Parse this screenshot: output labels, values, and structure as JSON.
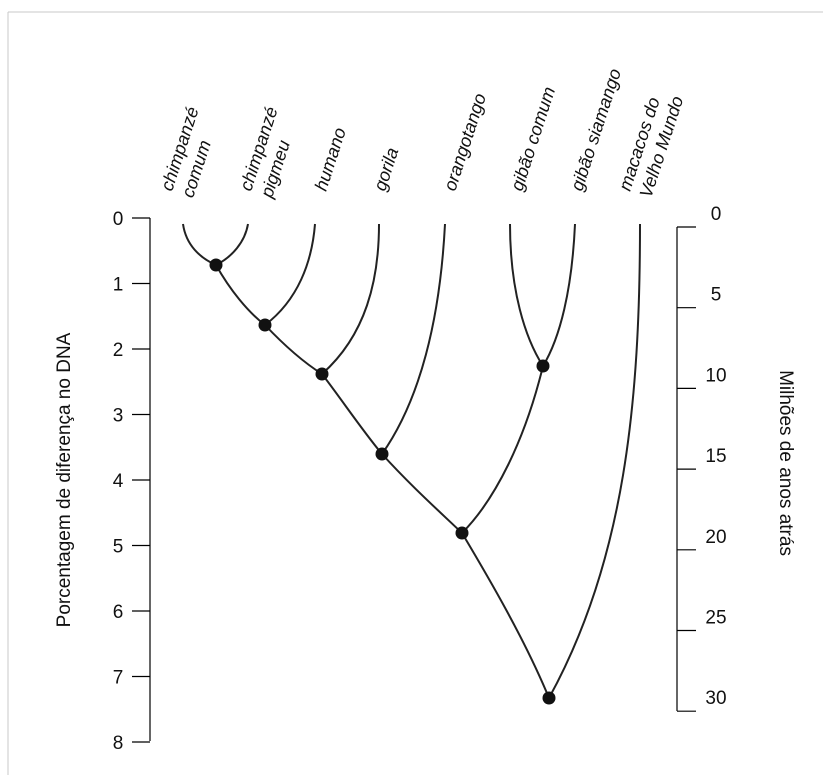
{
  "left_axis": {
    "title": "Porcentagem de diferença no DNA",
    "ticks": [
      "0",
      "1",
      "2",
      "3",
      "4",
      "5",
      "6",
      "7",
      "8"
    ]
  },
  "right_axis": {
    "title": "Milhões de anos atrás",
    "ticks": [
      "0",
      "5",
      "10",
      "15",
      "20",
      "25",
      "30"
    ]
  },
  "taxa": [
    {
      "line1": "chimpanzé",
      "line2": "comum"
    },
    {
      "line1": "chimpanzé",
      "line2": "pigmeu"
    },
    {
      "line1": "humano",
      "line2": ""
    },
    {
      "line1": "gorila",
      "line2": ""
    },
    {
      "line1": "orangotango",
      "line2": ""
    },
    {
      "line1": "gibão comum",
      "line2": ""
    },
    {
      "line1": "gibão siamango",
      "line2": ""
    },
    {
      "line1": "macacos do",
      "line2": "Velho Mundo"
    }
  ],
  "colors": {
    "branch": "#222222",
    "node": "#111111",
    "frame": "#c8c8c8"
  }
}
